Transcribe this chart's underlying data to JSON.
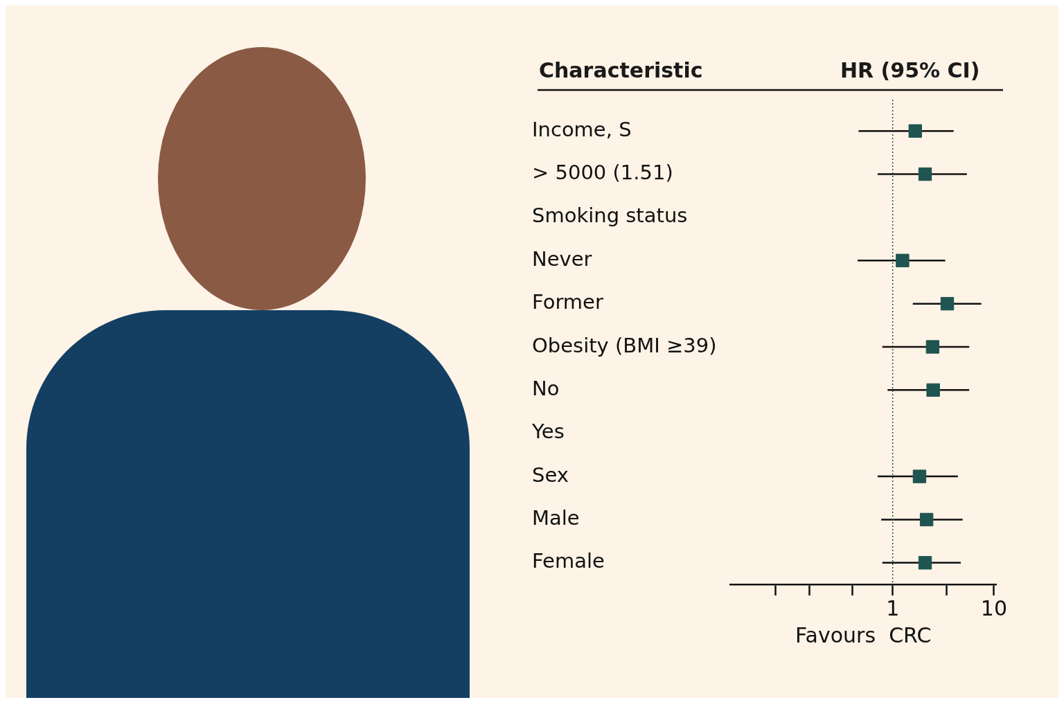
{
  "chart_data": {
    "type": "scatter",
    "orientation": "horizontal",
    "title": "HR (95% CI)",
    "ylabel": "Characteristic",
    "xlabel": "Favours  CRC",
    "categories": [
      "Income, S",
      "> 5000 (1.51)",
      "Smoking status",
      "Never",
      "Former",
      "Obesity (BMI ≥39)",
      "No",
      "Yes",
      "Sex",
      "Male",
      "Female"
    ],
    "values": [
      1.67,
      2.09,
      null,
      1.25,
      3.46,
      2.48,
      2.51,
      null,
      1.84,
      2.16,
      2.09
    ],
    "errors": [
      [
        0.46,
        4.0
      ],
      [
        0.71,
        5.4
      ],
      null,
      [
        0.45,
        3.3
      ],
      [
        1.58,
        7.5
      ],
      [
        0.79,
        5.7
      ],
      [
        0.89,
        5.7
      ],
      null,
      [
        0.71,
        4.4
      ],
      [
        0.77,
        4.9
      ],
      [
        0.79,
        4.7
      ]
    ],
    "color": "#1f5450",
    "marker": "square",
    "log": "x",
    "xlim": [
      0.025,
      10.5
    ],
    "xticks": [
      {
        "value": 0.07,
        "label": null
      },
      {
        "value": 0.15,
        "label": null
      },
      {
        "value": 0.4,
        "label": null
      },
      1,
      {
        "value": 3.4,
        "label": null
      },
      10
    ],
    "ref_lines": [
      {
        "axis": "x",
        "value": 1,
        "line_style": "dotted"
      }
    ],
    "grid": false
  }
}
